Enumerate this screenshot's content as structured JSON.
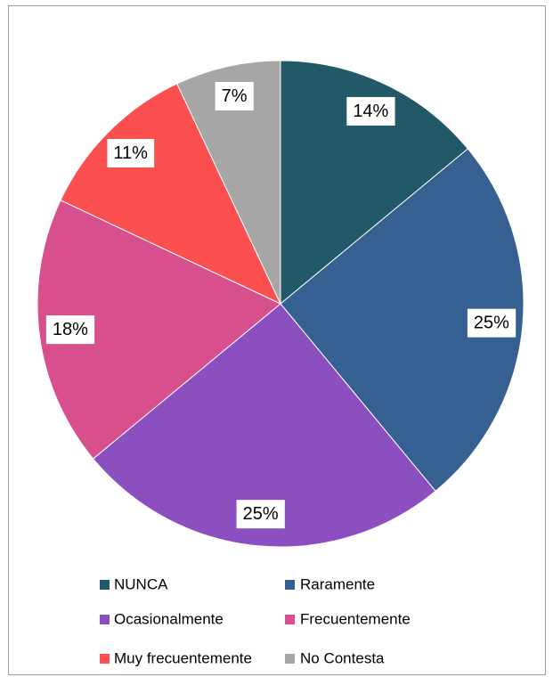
{
  "chart_data": {
    "type": "pie",
    "categories": [
      "NUNCA",
      "Raramente",
      "Ocasionalmente",
      "Frecuentemente",
      "Muy frecuentemente",
      "No Contesta"
    ],
    "values": [
      14,
      25,
      25,
      18,
      11,
      7
    ],
    "value_labels": [
      "14%",
      "25%",
      "25%",
      "18%",
      "11%",
      "7%"
    ],
    "colors": [
      "#215968",
      "#366092",
      "#8b4fc0",
      "#d84f8d",
      "#fc4f4f",
      "#a6a6a6"
    ],
    "legend": "bottom"
  }
}
